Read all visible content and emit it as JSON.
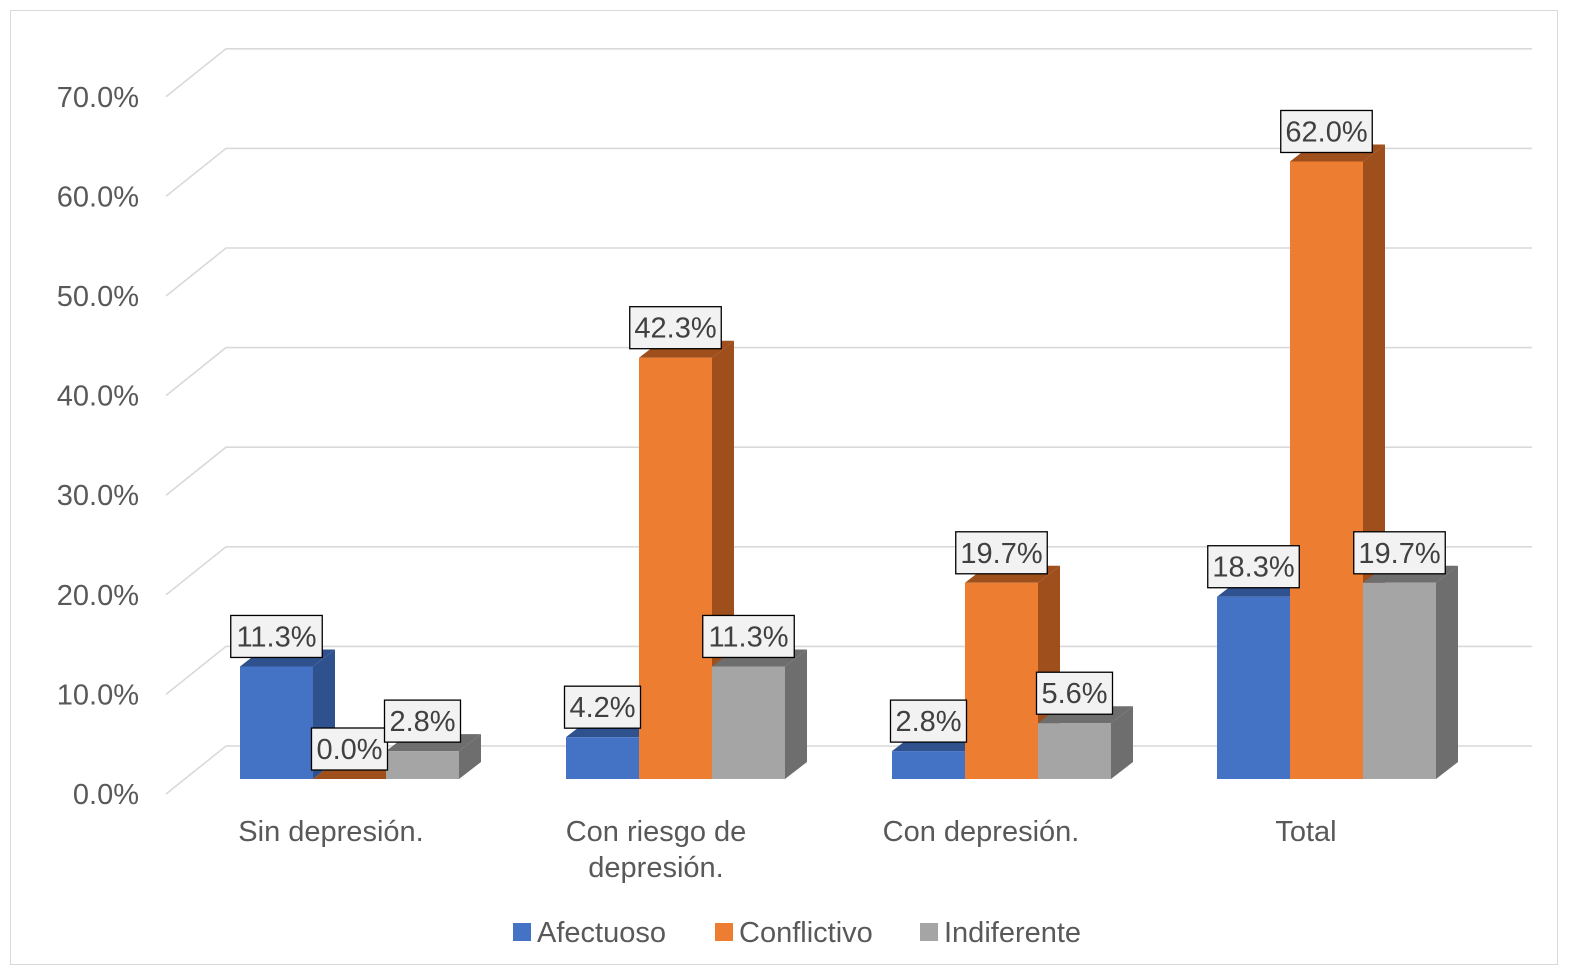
{
  "chart_data": {
    "type": "bar",
    "style": "3d-clustered-column",
    "categories": [
      "Sin depresión.",
      "Con riesgo de\ndepresión.",
      "Con depresión.",
      "Total"
    ],
    "series": [
      {
        "name": "Afectuoso",
        "values": [
          11.3,
          4.2,
          2.8,
          18.3
        ],
        "labels": [
          "11.3%",
          "4.2%",
          "2.8%",
          "18.3%"
        ],
        "color": "#4472C4",
        "side_color": "#2F528F"
      },
      {
        "name": "Conflictivo",
        "values": [
          0.0,
          42.3,
          19.7,
          62.0
        ],
        "labels": [
          "0.0%",
          "42.3%",
          "19.7%",
          "62.0%"
        ],
        "color": "#ED7D31",
        "side_color": "#9E4F1C"
      },
      {
        "name": "Indiferente",
        "values": [
          2.8,
          11.3,
          5.6,
          19.7
        ],
        "labels": [
          "2.8%",
          "11.3%",
          "5.6%",
          "19.7%"
        ],
        "color": "#A5A5A5",
        "side_color": "#6E6E6E"
      }
    ],
    "ylim": [
      0,
      70
    ],
    "yticks": [
      "0.0%",
      "10.0%",
      "20.0%",
      "30.0%",
      "40.0%",
      "50.0%",
      "60.0%",
      "70.0%"
    ],
    "grid": true,
    "legend": "bottom",
    "title": "",
    "xlabel": "",
    "ylabel": ""
  }
}
